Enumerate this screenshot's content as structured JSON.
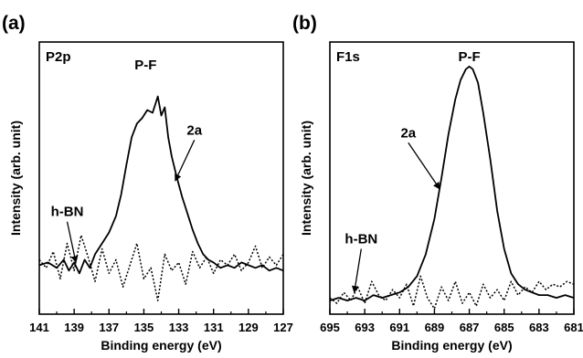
{
  "chart_data": [
    {
      "type": "line",
      "panel_label": "(a)",
      "title": "P2p",
      "xlabel": "Binding energy (eV)",
      "ylabel": "Intensity (arb. unit)",
      "xlim": [
        141,
        127
      ],
      "x_reversed": true,
      "x_ticks": [
        "141",
        "139",
        "137",
        "135",
        "133",
        "131",
        "129",
        "127"
      ],
      "x_tick_values": [
        141,
        139,
        137,
        135,
        133,
        131,
        129,
        127
      ],
      "ylim": [
        0,
        1
      ],
      "y_ticks_shown": false,
      "annotations": [
        {
          "text": "P-F",
          "x": 134.9,
          "y": 0.9,
          "arrow": false
        },
        {
          "text": "2a",
          "x": 132.1,
          "y": 0.66,
          "arrow": true,
          "target_x": 133.2,
          "target_y": 0.49
        },
        {
          "text": "h-BN",
          "x": 139.4,
          "y": 0.36,
          "arrow": true,
          "target_x": 138.9,
          "target_y": 0.19
        }
      ],
      "series": [
        {
          "style": "solid",
          "x": [
            141,
            140.5,
            140,
            139.6,
            139.3,
            139.0,
            138.7,
            138.4,
            138.1,
            137.8,
            137.4,
            137.0,
            136.6,
            136.3,
            136.0,
            135.7,
            135.4,
            135.1,
            134.8,
            134.5,
            134.2,
            134.0,
            133.8,
            133.6,
            133.4,
            133.1,
            132.8,
            132.5,
            132.2,
            131.9,
            131.6,
            131.3,
            131.0,
            130.6,
            130.2,
            129.8,
            129.4,
            129.0,
            128.6,
            128.2,
            127.8,
            127.4,
            127.0
          ],
          "y": [
            0.18,
            0.19,
            0.17,
            0.2,
            0.16,
            0.19,
            0.15,
            0.2,
            0.17,
            0.22,
            0.26,
            0.3,
            0.36,
            0.44,
            0.55,
            0.65,
            0.7,
            0.72,
            0.75,
            0.74,
            0.8,
            0.73,
            0.76,
            0.65,
            0.58,
            0.5,
            0.43,
            0.37,
            0.31,
            0.26,
            0.22,
            0.2,
            0.19,
            0.17,
            0.18,
            0.17,
            0.19,
            0.18,
            0.17,
            0.18,
            0.16,
            0.17,
            0.16
          ]
        },
        {
          "style": "dotted",
          "x": [
            141,
            140.6,
            140.2,
            139.8,
            139.4,
            139.0,
            138.6,
            138.2,
            137.8,
            137.4,
            137.0,
            136.6,
            136.2,
            135.8,
            135.4,
            135.0,
            134.6,
            134.2,
            133.8,
            133.4,
            133.0,
            132.6,
            132.2,
            131.8,
            131.4,
            131.0,
            130.6,
            130.2,
            129.8,
            129.4,
            129.0,
            128.6,
            128.2,
            127.8,
            127.4,
            127.0
          ],
          "y": [
            0.2,
            0.17,
            0.23,
            0.13,
            0.26,
            0.16,
            0.29,
            0.21,
            0.12,
            0.24,
            0.15,
            0.2,
            0.1,
            0.18,
            0.26,
            0.13,
            0.17,
            0.05,
            0.22,
            0.16,
            0.19,
            0.11,
            0.23,
            0.17,
            0.21,
            0.15,
            0.2,
            0.18,
            0.22,
            0.16,
            0.19,
            0.25,
            0.17,
            0.21,
            0.18,
            0.22
          ]
        }
      ]
    },
    {
      "type": "line",
      "panel_label": "(b)",
      "title": "F1s",
      "xlabel": "Binding energy (eV)",
      "ylabel": "Intensity (arb. unit)",
      "xlim": [
        695,
        681
      ],
      "x_reversed": true,
      "x_ticks": [
        "695",
        "693",
        "691",
        "689",
        "687",
        "685",
        "683",
        "681"
      ],
      "x_tick_values": [
        695,
        693,
        691,
        689,
        687,
        685,
        683,
        681
      ],
      "ylim": [
        0,
        1
      ],
      "y_ticks_shown": false,
      "annotations": [
        {
          "text": "P-F",
          "x": 687.0,
          "y": 0.93,
          "arrow": false
        },
        {
          "text": "2a",
          "x": 690.5,
          "y": 0.65,
          "arrow": true,
          "target_x": 688.7,
          "target_y": 0.46
        },
        {
          "text": "h-BN",
          "x": 693.2,
          "y": 0.26,
          "arrow": true,
          "target_x": 693.6,
          "target_y": 0.08
        }
      ],
      "series": [
        {
          "style": "solid",
          "x": [
            695,
            694.5,
            694.0,
            693.5,
            693.0,
            692.5,
            692.0,
            691.5,
            691.0,
            690.5,
            690.0,
            689.5,
            689.0,
            688.6,
            688.2,
            687.8,
            687.5,
            687.2,
            687.0,
            686.8,
            686.5,
            686.2,
            685.8,
            685.4,
            685.0,
            684.6,
            684.2,
            683.8,
            683.4,
            683.0,
            682.5,
            682.0,
            681.5,
            681.0
          ],
          "y": [
            0.05,
            0.06,
            0.05,
            0.06,
            0.05,
            0.07,
            0.06,
            0.07,
            0.08,
            0.1,
            0.14,
            0.22,
            0.35,
            0.5,
            0.66,
            0.79,
            0.86,
            0.9,
            0.91,
            0.9,
            0.85,
            0.74,
            0.57,
            0.38,
            0.24,
            0.15,
            0.11,
            0.09,
            0.08,
            0.07,
            0.07,
            0.06,
            0.07,
            0.06
          ]
        },
        {
          "style": "dotted",
          "x": [
            695,
            694.6,
            694.2,
            693.8,
            693.4,
            693.0,
            692.6,
            692.2,
            691.8,
            691.4,
            691.0,
            690.6,
            690.2,
            689.8,
            689.4,
            689.0,
            688.6,
            688.2,
            687.8,
            687.4,
            687.0,
            686.6,
            686.2,
            685.8,
            685.4,
            685.0,
            684.6,
            684.2,
            683.8,
            683.4,
            683.0,
            682.6,
            682.2,
            681.8,
            681.4,
            681.0
          ],
          "y": [
            0.06,
            0.04,
            0.08,
            0.05,
            0.1,
            0.04,
            0.12,
            0.07,
            0.05,
            0.09,
            0.06,
            0.11,
            0.03,
            0.14,
            0.06,
            0.02,
            0.1,
            0.05,
            0.12,
            0.04,
            0.08,
            0.03,
            0.11,
            0.06,
            0.09,
            0.05,
            0.12,
            0.07,
            0.1,
            0.08,
            0.12,
            0.09,
            0.11,
            0.1,
            0.12,
            0.11
          ]
        }
      ]
    }
  ]
}
